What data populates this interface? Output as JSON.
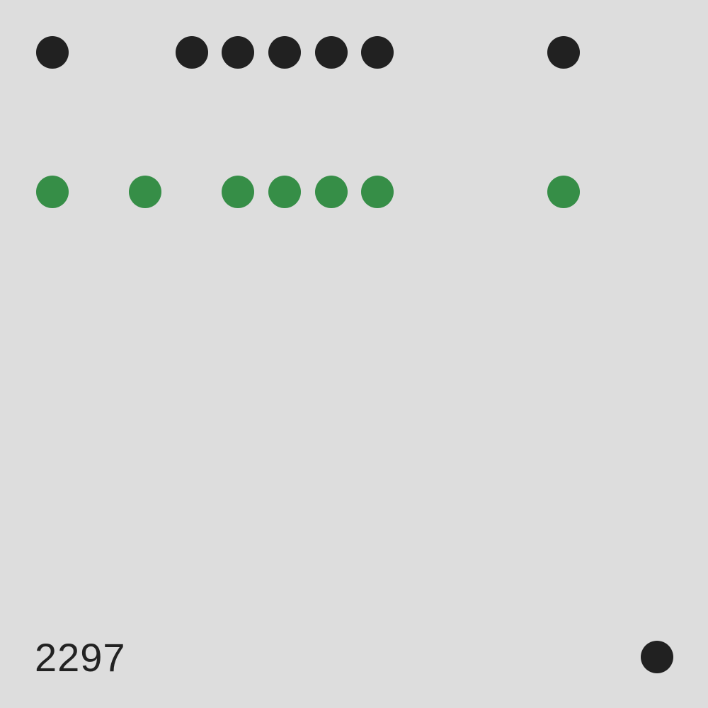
{
  "colors": {
    "background": "#dddddd",
    "dark_dot": "#212121",
    "green_dot": "#368e47",
    "text": "#222222"
  },
  "rows": [
    {
      "name": "dark-row",
      "color": "dark_dot",
      "slots": [
        1,
        0,
        0,
        1,
        1,
        1,
        1,
        1,
        0,
        0,
        0,
        1
      ]
    },
    {
      "name": "green-row",
      "color": "green_dot",
      "slots": [
        1,
        0,
        1,
        0,
        1,
        1,
        1,
        1,
        0,
        0,
        0,
        1
      ]
    }
  ],
  "footer": {
    "number": "2297",
    "corner_dot_color": "dark_dot"
  }
}
